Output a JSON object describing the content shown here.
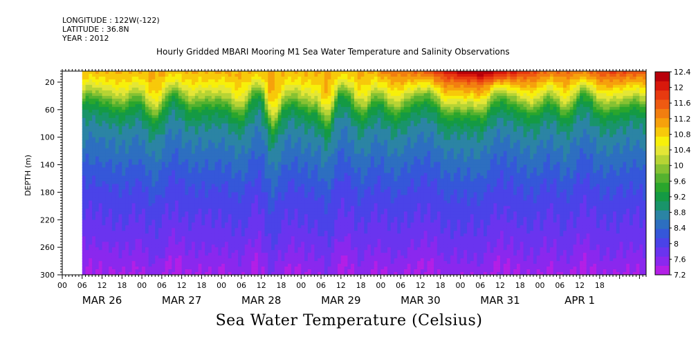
{
  "header": {
    "longitude": "LONGITUDE : 122W(-122)",
    "latitude": "LATITUDE : 36.8N",
    "year": "YEAR : 2012",
    "title": "Hourly Gridded MBARI Mooring M1 Sea Water Temperature and Salinity Observations"
  },
  "bottom_title": "Sea Water Temperature (Celsius)",
  "chart_data": {
    "type": "heatmap",
    "title": "Hourly Gridded MBARI Mooring M1 Sea Water Temperature and Salinity Observations",
    "xlabel": "",
    "ylabel": "DEPTH (m)",
    "y_inverted": true,
    "ylim": [
      300,
      4
    ],
    "y_ticks": [
      20,
      60,
      100,
      140,
      180,
      220,
      260,
      300
    ],
    "x_hour_ticks": [
      "00",
      "06",
      "12",
      "18",
      "00",
      "06",
      "12",
      "18",
      "00",
      "06",
      "12",
      "18",
      "00",
      "06",
      "12",
      "18",
      "00",
      "06",
      "12",
      "18",
      "00",
      "06",
      "12",
      "18",
      "00",
      "06",
      "12",
      "18"
    ],
    "x_day_labels": [
      "MAR 26",
      "MAR 27",
      "MAR 28",
      "MAR 29",
      "MAR 30",
      "MAR 31",
      "APR  1"
    ],
    "x_range_hours": [
      0,
      176
    ],
    "data_start_hour": 6,
    "colorbar": {
      "label": "Sea Water Temperature (Celsius)",
      "levels": [
        7.2,
        7.6,
        8,
        8.4,
        8.8,
        9.2,
        9.6,
        10,
        10.4,
        10.8,
        11.2,
        11.6,
        12,
        12.4
      ],
      "colors": [
        "#b31fe6",
        "#8a28ee",
        "#6a34ef",
        "#4a43e8",
        "#3557d9",
        "#2d6fc0",
        "#2b84a4",
        "#19946a",
        "#149a44",
        "#2aa62c",
        "#55b22f",
        "#86c232",
        "#b7d434",
        "#e4e636",
        "#f7f00a",
        "#f7c90a",
        "#f6a10c",
        "#f27e10",
        "#ee5a12",
        "#e83a10",
        "#d8180c",
        "#b8000a"
      ]
    },
    "profile": {
      "depth_m": [
        4,
        20,
        40,
        60,
        80,
        100,
        140,
        180,
        220,
        260,
        300
      ],
      "temperature_c_typical": [
        11.0,
        10.7,
        10.1,
        9.3,
        8.9,
        8.7,
        8.4,
        8.1,
        7.9,
        7.7,
        7.4
      ]
    },
    "max_surface_temperature_c": 12.4,
    "max_surface_time": "MAR 31 ~06"
  }
}
